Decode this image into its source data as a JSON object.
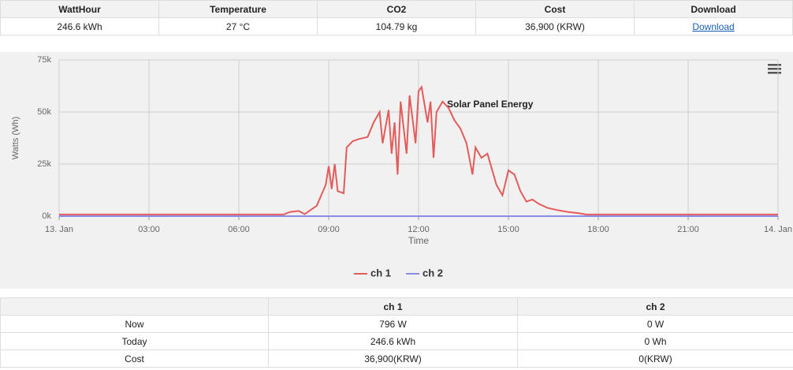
{
  "summary_table": {
    "headers": [
      "WattHour",
      "Temperature",
      "CO2",
      "Cost",
      "Download"
    ],
    "row": [
      "246.6 kWh",
      "27 °C",
      "104.79 kg",
      "36,900 (KRW)",
      "Download"
    ]
  },
  "chart_data": {
    "type": "line",
    "title": "Solar Panel Energy",
    "x_label": "Time",
    "y_label": "Watts (Wh)",
    "xlim": [
      0,
      24
    ],
    "xticks": [
      {
        "value": 0,
        "label": "13. Jan"
      },
      {
        "value": 3,
        "label": "03:00"
      },
      {
        "value": 6,
        "label": "06:00"
      },
      {
        "value": 9,
        "label": "09:00"
      },
      {
        "value": 12,
        "label": "12:00"
      },
      {
        "value": 15,
        "label": "15:00"
      },
      {
        "value": 18,
        "label": "18:00"
      },
      {
        "value": 21,
        "label": "21:00"
      },
      {
        "value": 24,
        "label": "14. Jan"
      }
    ],
    "ylim": [
      0,
      75000
    ],
    "yticks": [
      {
        "value": 0,
        "label": "0k"
      },
      {
        "value": 25000,
        "label": "25k"
      },
      {
        "value": 50000,
        "label": "50k"
      },
      {
        "value": 75000,
        "label": "75k"
      }
    ],
    "grid": true,
    "legend": "bottom",
    "series": [
      {
        "name": "ch 1",
        "color": "#e35b5b",
        "x": [
          0,
          7.5,
          7.7,
          8.0,
          8.2,
          8.4,
          8.6,
          8.9,
          9.0,
          9.1,
          9.2,
          9.3,
          9.5,
          9.6,
          9.8,
          10.0,
          10.3,
          10.5,
          10.7,
          10.8,
          11.0,
          11.1,
          11.2,
          11.3,
          11.4,
          11.6,
          11.7,
          11.9,
          12.0,
          12.1,
          12.3,
          12.4,
          12.5,
          12.6,
          12.8,
          13.0,
          13.2,
          13.4,
          13.6,
          13.8,
          13.9,
          14.1,
          14.3,
          14.6,
          14.8,
          15.0,
          15.2,
          15.4,
          15.6,
          15.8,
          16.0,
          16.3,
          16.6,
          17.0,
          17.3,
          17.6,
          18.0,
          24
        ],
        "values": [
          800,
          800,
          2000,
          2500,
          1000,
          3000,
          5000,
          15000,
          24000,
          13000,
          25000,
          12000,
          11000,
          33000,
          36000,
          37000,
          38000,
          45000,
          50000,
          35000,
          51000,
          30000,
          45000,
          20000,
          55000,
          30000,
          58000,
          35000,
          60000,
          62000,
          45000,
          55000,
          28000,
          50000,
          55000,
          52000,
          46000,
          42000,
          35000,
          20000,
          33000,
          28000,
          30000,
          15000,
          10000,
          22000,
          20000,
          12000,
          7000,
          8000,
          6000,
          4000,
          3000,
          2000,
          1500,
          800,
          800,
          800
        ]
      },
      {
        "name": "ch 2",
        "color": "#8c8ce6",
        "x": [
          0,
          24
        ],
        "values": [
          0,
          0
        ]
      }
    ]
  },
  "channel_table": {
    "headers": [
      "ch 1",
      "ch 2"
    ],
    "rows": [
      [
        "Now",
        "796 W",
        "0 W"
      ],
      [
        "Today",
        "246.6 kWh",
        "0 Wh"
      ],
      [
        "Cost",
        "36,900(KRW)",
        "0(KRW)"
      ]
    ]
  }
}
